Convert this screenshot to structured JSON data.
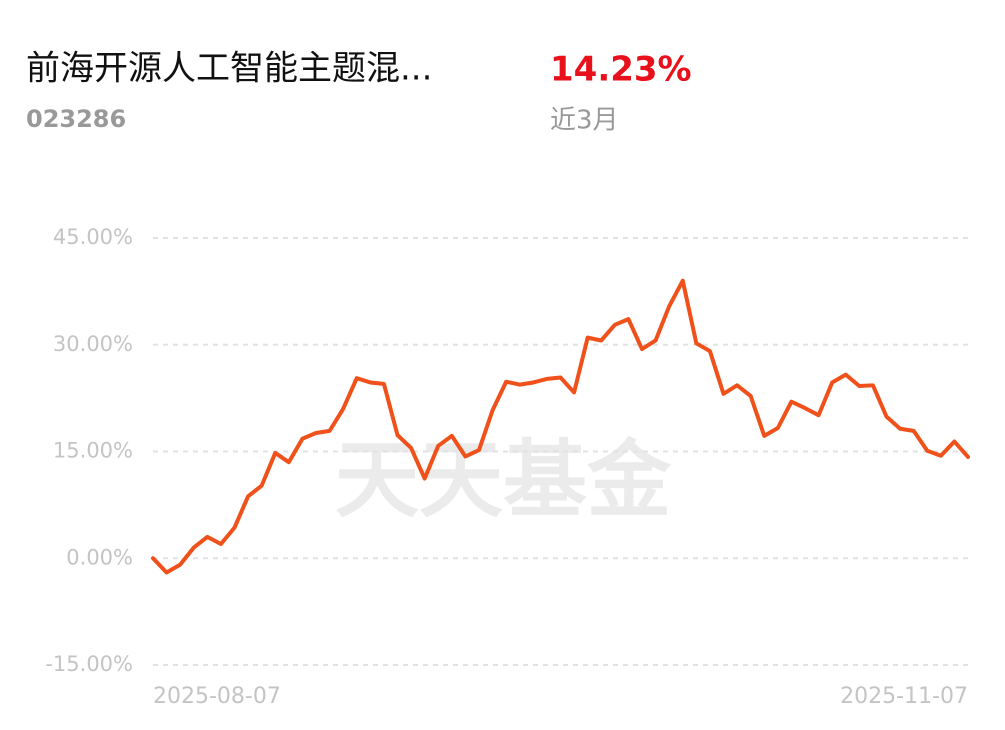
{
  "header": {
    "title": "前海开源人工智能主题混...",
    "code": "023286",
    "return": "14.23%",
    "period": "近3月"
  },
  "chart_data": {
    "type": "line",
    "watermark": "天天基金",
    "categories": [
      "2025-08-07",
      null,
      null,
      null,
      null,
      null,
      null,
      null,
      null,
      null,
      null,
      null,
      null,
      null,
      null,
      null,
      null,
      null,
      null,
      null,
      null,
      null,
      null,
      null,
      null,
      null,
      null,
      null,
      null,
      null,
      null,
      null,
      null,
      null,
      null,
      null,
      null,
      null,
      null,
      null,
      null,
      null,
      null,
      null,
      null,
      null,
      null,
      null,
      null,
      null,
      null,
      null,
      null,
      null,
      null,
      null,
      null,
      null,
      null,
      null,
      "2025-11-07"
    ],
    "series": [
      {
        "color": "#f0501a",
        "values": [
          0,
          -2,
          -0.9,
          1.5,
          3,
          2,
          4.3,
          8.7,
          10.2,
          14.8,
          13.5,
          16.8,
          17.6,
          17.9,
          21,
          25.3,
          24.7,
          24.5,
          17.3,
          15.5,
          11.2,
          15.8,
          17.2,
          14.3,
          15.2,
          20.8,
          24.8,
          24.4,
          24.7,
          25.2,
          25.4,
          23.3,
          31,
          30.6,
          32.8,
          33.6,
          29.4,
          30.6,
          35.4,
          39,
          30.2,
          29.1,
          23.1,
          24.3,
          22.8,
          17.2,
          18.3,
          22,
          21.1,
          20.1,
          24.7,
          25.8,
          24.2,
          24.3,
          19.9,
          18.2,
          17.9,
          15.1,
          14.4,
          16.4,
          14.23
        ]
      }
    ],
    "ylim": [
      -15,
      45
    ],
    "yticks": [
      {
        "value": 45,
        "label": "45.00%"
      },
      {
        "value": 30,
        "label": "30.00%"
      },
      {
        "value": 15,
        "label": "15.00%"
      },
      {
        "value": 0,
        "label": "0.00%"
      },
      {
        "value": -15,
        "label": "-15.00%"
      }
    ],
    "grid": true
  }
}
